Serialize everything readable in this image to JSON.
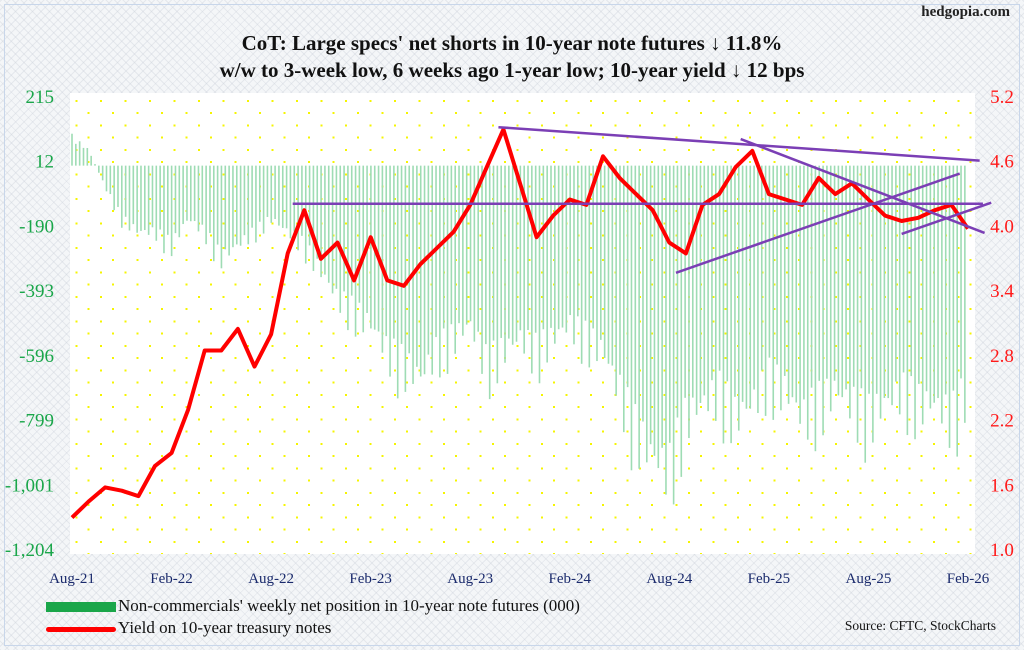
{
  "site": "hedgopia.com",
  "title_line1": "CoT: Large specs' net shorts in 10-year note futures ↓ 11.8%",
  "title_line2": "w/w to 3-week low, 6 weeks ago 1-year low; 10-year yield ↓ 12 bps",
  "source": "Source: CFTC, StockCharts",
  "colors": {
    "bars": "#9edcb4",
    "yield": "#ff0000",
    "trend": "#7b3fb5",
    "left_axis": "#1aa64a",
    "right_axis": "#ff1a1a",
    "x_axis": "#1a2a6c",
    "dots": "#f5f500"
  },
  "chart_data": {
    "type": "bar+line",
    "title": "CoT: Large specs' net shorts in 10-year note futures ↓ 11.8% w/w to 3-week low, 6 weeks ago 1-year low; 10-year yield ↓ 12 bps",
    "x_start": "Aug-21",
    "x_unit": "months since Aug-21",
    "x_ticks": [
      {
        "m": 0,
        "label": "Aug-21"
      },
      {
        "m": 6,
        "label": "Feb-22"
      },
      {
        "m": 12,
        "label": "Aug-22"
      },
      {
        "m": 18,
        "label": "Feb-23"
      },
      {
        "m": 24,
        "label": "Aug-23"
      },
      {
        "m": 30,
        "label": "Feb-24"
      },
      {
        "m": 36,
        "label": "Aug-24"
      },
      {
        "m": 42,
        "label": "Feb-25"
      },
      {
        "m": 48,
        "label": "Aug-25"
      },
      {
        "m": 54,
        "label": "Feb-26"
      }
    ],
    "left_axis": {
      "ylim": [
        -1204,
        215
      ],
      "ticks": [
        "215",
        "12",
        "-190",
        "-393",
        "-596",
        "-799",
        "-1,001",
        "-1,204"
      ]
    },
    "right_axis": {
      "ylim": [
        1.0,
        5.2
      ],
      "ticks": [
        "5.2",
        "4.6",
        "4.0",
        "3.4",
        "2.8",
        "2.2",
        "1.6",
        "1.0"
      ]
    },
    "series": [
      {
        "name": "Non-commercials' weekly net position in 10-year note futures (000)",
        "type": "bar",
        "axis": "left",
        "values": [
          100,
          60,
          -80,
          -200,
          -250,
          -250,
          -300,
          -200,
          -250,
          -350,
          -300,
          -250,
          -200,
          -250,
          -300,
          -400,
          -500,
          -550,
          -600,
          -700,
          -750,
          -800,
          -700,
          -650,
          -600,
          -750,
          -700,
          -650,
          -700,
          -650,
          -600,
          -650,
          -700,
          -850,
          -1000,
          -1100,
          -1150,
          -950,
          -900,
          -850,
          -950,
          -900,
          -800,
          -850,
          -950,
          -900,
          -850,
          -900,
          -950,
          -900,
          -850,
          -900,
          -900,
          -950,
          -840
        ]
      },
      {
        "name": "Yield on 10-year treasury notes",
        "type": "line",
        "axis": "right",
        "values": [
          1.3,
          1.45,
          1.58,
          1.55,
          1.5,
          1.78,
          1.9,
          2.3,
          2.85,
          2.85,
          3.05,
          2.7,
          3.0,
          3.75,
          4.15,
          3.7,
          3.85,
          3.5,
          3.9,
          3.5,
          3.45,
          3.65,
          3.8,
          3.95,
          4.2,
          4.55,
          4.9,
          4.4,
          3.9,
          4.1,
          4.25,
          4.2,
          4.65,
          4.45,
          4.3,
          4.15,
          3.85,
          3.75,
          4.2,
          4.3,
          4.55,
          4.7,
          4.3,
          4.25,
          4.2,
          4.45,
          4.3,
          4.4,
          4.25,
          4.1,
          4.05,
          4.08,
          4.15,
          4.2,
          3.98
        ]
      }
    ],
    "trendlines": [
      {
        "from": [
          25.7,
          4.92
        ],
        "to": [
          54.7,
          4.61
        ]
      },
      {
        "from": [
          40.3,
          4.81
        ],
        "to": [
          55.0,
          3.94
        ]
      },
      {
        "from": [
          36.4,
          3.57
        ],
        "to": [
          53.5,
          4.49
        ]
      },
      {
        "from": [
          13.3,
          4.21
        ],
        "to": [
          54.9,
          4.21
        ]
      },
      {
        "from": [
          50.0,
          3.93
        ],
        "to": [
          55.4,
          4.22
        ]
      }
    ],
    "legend": [
      "Non-commercials' weekly net position in 10-year note futures (000)",
      "Yield on 10-year treasury notes"
    ],
    "legend_position": "bottom-left"
  }
}
